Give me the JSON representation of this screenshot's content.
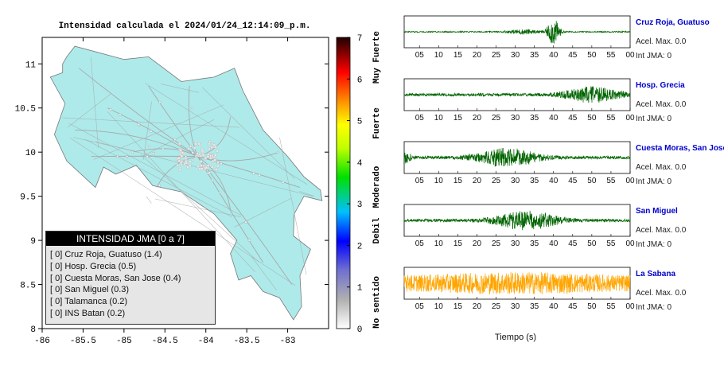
{
  "map": {
    "title": "Intensidad calculada el 2024/01/24_12:14:09_p.m.",
    "x_ticks": [
      "-86",
      "-85.5",
      "-85",
      "-84.5",
      "-84",
      "-83.5",
      "-83"
    ],
    "y_ticks": [
      "8",
      "8.5",
      "9",
      "9.5",
      "10",
      "10.5",
      "11"
    ],
    "land_color": "#aeeaea",
    "road_color": "#a8a8a8"
  },
  "colorbar": {
    "ticks": [
      "0",
      "1",
      "2",
      "3",
      "4",
      "5",
      "6",
      "7"
    ],
    "labels": [
      "No sentido",
      "Debil",
      "Moderado",
      "Fuerte",
      "Muy Fuerte"
    ]
  },
  "legend": {
    "title": "INTENSIDAD JMA [0 a 7]",
    "items": [
      {
        "value": "[ 0]",
        "label": "Cruz Roja, Guatuso (1.4)"
      },
      {
        "value": "[ 0]",
        "label": "Hosp. Grecia (0.5)"
      },
      {
        "value": "[ 0]",
        "label": "Cuesta Moras, San Jose (0.4)"
      },
      {
        "value": "[ 0]",
        "label": "San Miguel (0.3)"
      },
      {
        "value": "[ 0]",
        "label": "Talamanca (0.2)"
      },
      {
        "value": "[ 0]",
        "label": "INS Batan (0.2)"
      }
    ]
  },
  "traces": {
    "time_ticks": [
      "05",
      "10",
      "15",
      "20",
      "25",
      "30",
      "35",
      "40",
      "45",
      "50",
      "55",
      "00"
    ],
    "xlabel": "Tiempo (s)",
    "stations": [
      {
        "name": "Cruz Roja, Guatuso",
        "accel": "Acel. Max. 0.0",
        "int": "Int JMA: 0",
        "color": "#006400"
      },
      {
        "name": "Hosp. Grecia",
        "accel": "Acel. Max. 0.0",
        "int": "Int JMA: 0",
        "color": "#006400"
      },
      {
        "name": "Cuesta Moras, San Jose",
        "accel": "Acel. Max. 0.0",
        "int": "Int JMA: 0",
        "color": "#006400"
      },
      {
        "name": "San Miguel",
        "accel": "Acel. Max. 0.0",
        "int": "Int JMA: 0",
        "color": "#006400"
      },
      {
        "name": "La Sabana",
        "accel": "Acel. Max. 0.0",
        "int": "Int JMA: 0",
        "color": "#ffa500"
      }
    ]
  },
  "chart_data": [
    {
      "type": "heatmap",
      "title": "Intensidad calculada el 2024/01/24_12:14:09_p.m.",
      "xlim": [
        -86,
        -82.5
      ],
      "ylim": [
        8,
        11.3
      ],
      "colorbar_range": [
        0,
        7
      ]
    },
    {
      "type": "line",
      "xlabel": "Tiempo (s)",
      "series": [
        {
          "name": "Cruz Roja, Guatuso",
          "peak_time": 40,
          "amplitude": 0.9
        },
        {
          "name": "Hosp. Grecia",
          "peak_time": 50,
          "amplitude": 0.5
        },
        {
          "name": "Cuesta Moras, San Jose",
          "peak_time": 28,
          "amplitude": 0.6
        },
        {
          "name": "San Miguel",
          "peak_time": 33,
          "amplitude": 0.6
        },
        {
          "name": "La Sabana",
          "peak_time": 30,
          "amplitude": 0.75
        }
      ]
    }
  ]
}
